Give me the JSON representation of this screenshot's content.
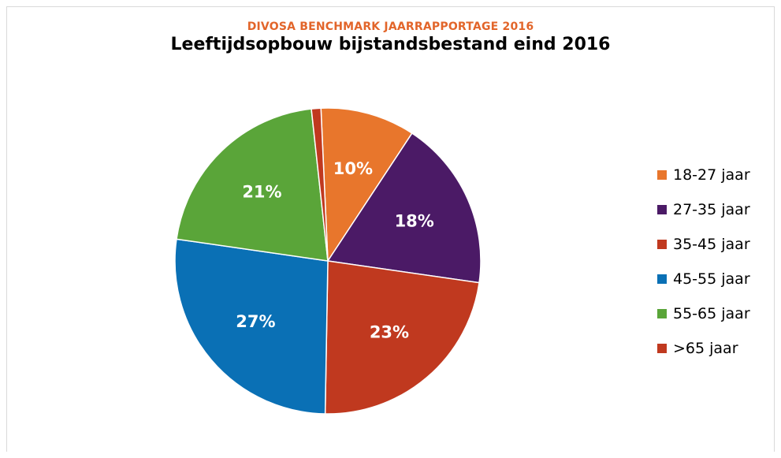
{
  "chart_data": {
    "type": "pie",
    "supertitle": "DIVOSA BENCHMARK JAARRAPPORTAGE 2016",
    "title": "Leeftijdsopbouw bijstandsbestand eind 2016",
    "categories": [
      "18-27 jaar",
      "27-35 jaar",
      "35-45 jaar",
      "45-55 jaar",
      "55-65 jaar",
      ">65 jaar"
    ],
    "values": [
      10,
      18,
      23,
      27,
      21,
      1
    ],
    "data_labels": [
      "10%",
      "18%",
      "23%",
      "27%",
      "21%",
      ""
    ],
    "colors": [
      "#e8762c",
      "#4b1a66",
      "#c0391f",
      "#0a70b5",
      "#5aa539",
      "#c0391f"
    ],
    "legend_position": "right",
    "start_angle_deg": 90,
    "direction": "clockwise",
    "supertitle_color": "#e2652a"
  }
}
